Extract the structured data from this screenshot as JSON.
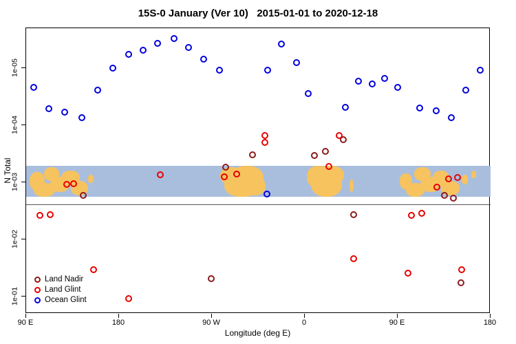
{
  "title": "15S-0 January (Ver 10)   2015-01-01 to 2020-12-18",
  "chart_data": {
    "type": "scatter",
    "title": "15S-0 January (Ver 10)   2015-01-01 to 2020-12-18",
    "xlabel": "Longitude (deg E)",
    "ylabel": "N Total",
    "grid": false,
    "x_axis": {
      "lim": [
        90,
        540
      ],
      "ticks": [
        {
          "label": "90 E",
          "lon": 90
        },
        {
          "label": "180",
          "lon": 180
        },
        {
          "label": "90 W",
          "lon": 270
        },
        {
          "label": "0",
          "lon": 360
        },
        {
          "label": "90 E",
          "lon": 450
        },
        {
          "label": "180",
          "lon": 540
        }
      ]
    },
    "y_axis": {
      "scale": "log-reversed-small-values-at-top",
      "top_value": 2e-06,
      "bottom_value": 0.2,
      "ticks": [
        {
          "label": "1e-05",
          "value": 1e-05
        },
        {
          "label": "1e-04",
          "value": 0.0001
        },
        {
          "label": "1e-03",
          "value": 0.001
        },
        {
          "label": "1e-02",
          "value": 0.01
        },
        {
          "label": "1e-01",
          "value": 0.1
        }
      ]
    },
    "map_band": {
      "description": "latitude strip map 15S-0 drawn across plot near 1e-03",
      "top_value": 0.00051,
      "bottom_value": 0.0018,
      "ocean_color": "#a9bedd",
      "land_color": "#f6c35f",
      "land_blocks": [
        [
          93,
          108,
          0.2,
          0.8
        ],
        [
          97,
          118,
          0.55,
          1.0
        ],
        [
          107,
          122,
          0.05,
          0.5
        ],
        [
          113,
          132,
          0.35,
          0.85
        ],
        [
          124,
          142,
          0.15,
          0.65
        ],
        [
          133,
          150,
          0.5,
          0.95
        ],
        [
          150,
          155,
          0.3,
          0.55
        ],
        [
          278,
          300,
          0.05,
          0.6
        ],
        [
          282,
          316,
          0.25,
          1.0
        ],
        [
          288,
          320,
          0.0,
          0.8
        ],
        [
          300,
          322,
          0.35,
          0.95
        ],
        [
          362,
          384,
          0.0,
          0.7
        ],
        [
          366,
          396,
          0.2,
          1.0
        ],
        [
          372,
          398,
          0.0,
          0.6
        ],
        [
          403,
          407,
          0.45,
          0.85
        ],
        [
          452,
          464,
          0.25,
          0.75
        ],
        [
          458,
          476,
          0.55,
          1.0
        ],
        [
          466,
          482,
          0.05,
          0.5
        ],
        [
          472,
          492,
          0.35,
          0.85
        ],
        [
          484,
          500,
          0.15,
          0.65
        ],
        [
          492,
          510,
          0.5,
          0.95
        ],
        [
          512,
          518,
          0.3,
          0.6
        ],
        [
          521,
          526,
          0.15,
          0.4
        ]
      ]
    },
    "ref_line": {
      "value": 0.0024,
      "color": "#555555"
    },
    "legend": {
      "position": "bottom-left",
      "labels": [
        "Land Nadir",
        "Land Glint",
        "Ocean Glint"
      ]
    },
    "series": [
      {
        "name": "Land Nadir",
        "color": "#8b1a1a",
        "points": [
          [
            145,
            0.0017
          ],
          [
            283,
            0.00054
          ],
          [
            309,
            0.00033
          ],
          [
            369,
            0.00034
          ],
          [
            380,
            0.00029
          ],
          [
            397,
            0.00018
          ],
          [
            407,
            0.0037
          ],
          [
            269,
            0.049
          ],
          [
            495,
            0.0017
          ],
          [
            504,
            0.0019
          ],
          [
            511,
            0.058
          ]
        ]
      },
      {
        "name": "Land Glint",
        "color": "#e60000",
        "points": [
          [
            103,
            0.0038
          ],
          [
            113,
            0.0037
          ],
          [
            129,
            0.0011
          ],
          [
            136,
            0.00105
          ],
          [
            155,
            0.034
          ],
          [
            189,
            0.11
          ],
          [
            220,
            0.00074
          ],
          [
            282,
            0.0008
          ],
          [
            294,
            0.00071
          ],
          [
            321,
            0.00015
          ],
          [
            321,
            0.0002
          ],
          [
            383,
            0.00053
          ],
          [
            393,
            0.00015
          ],
          [
            407,
            0.022
          ],
          [
            463,
            0.0038
          ],
          [
            473,
            0.0035
          ],
          [
            460,
            0.039
          ],
          [
            488,
            0.0012
          ],
          [
            499,
            0.00087
          ],
          [
            508,
            0.00082
          ],
          [
            512,
            0.034
          ]
        ]
      },
      {
        "name": "Ocean Glint",
        "color": "#0000dd",
        "points": [
          [
            97,
            2.2e-05
          ],
          [
            112,
            5.1e-05
          ],
          [
            127,
            5.9e-05
          ],
          [
            144,
            7.4e-05
          ],
          [
            159,
            2.4e-05
          ],
          [
            174,
            1e-05
          ],
          [
            189,
            5.7e-06
          ],
          [
            203,
            4.8e-06
          ],
          [
            217,
            3.7e-06
          ],
          [
            233,
            3e-06
          ],
          [
            247,
            4.3e-06
          ],
          [
            262,
            6.9e-06
          ],
          [
            277,
            1.1e-05
          ],
          [
            324,
            1.1e-05
          ],
          [
            337,
            3.8e-06
          ],
          [
            352,
            8e-06
          ],
          [
            363,
            2.8e-05
          ],
          [
            323,
            0.0016
          ],
          [
            399,
            4.9e-05
          ],
          [
            412,
            1.7e-05
          ],
          [
            425,
            1.9e-05
          ],
          [
            437,
            1.5e-05
          ],
          [
            450,
            2.2e-05
          ],
          [
            471,
            5e-05
          ],
          [
            487,
            5.6e-05
          ],
          [
            502,
            7.4e-05
          ],
          [
            516,
            2.4e-05
          ],
          [
            530,
            1.1e-05
          ]
        ]
      }
    ]
  }
}
